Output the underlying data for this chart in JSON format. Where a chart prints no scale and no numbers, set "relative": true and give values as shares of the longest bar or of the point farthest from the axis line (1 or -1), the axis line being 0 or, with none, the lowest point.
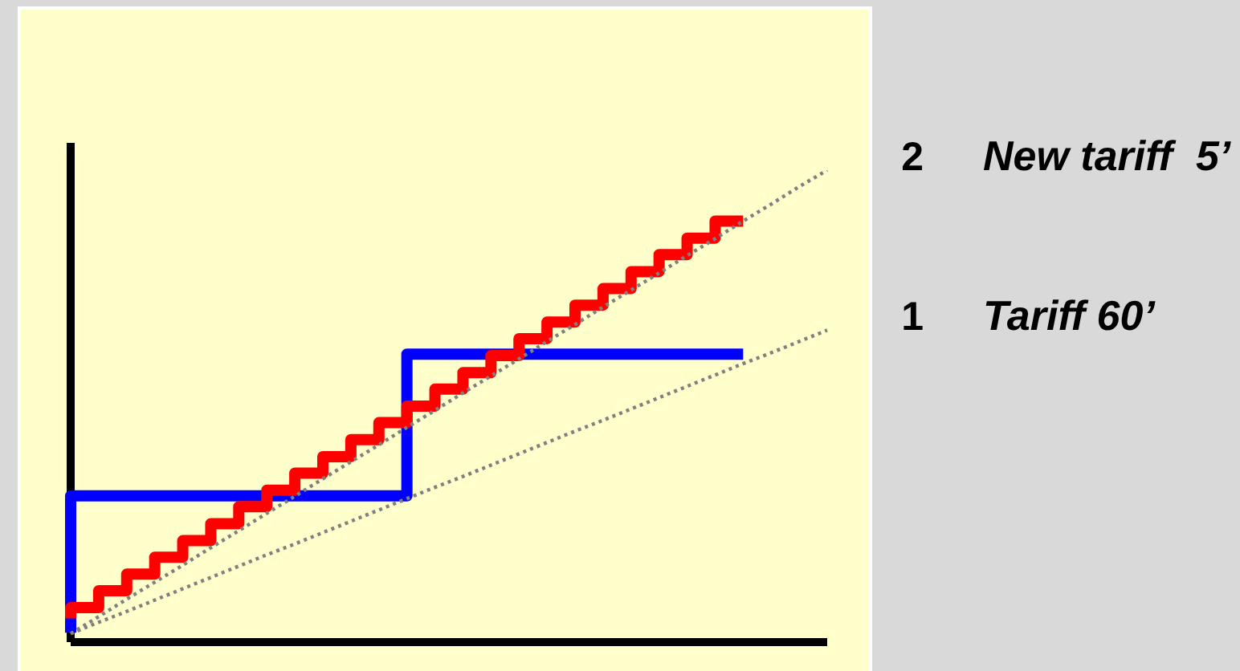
{
  "chart_data": {
    "type": "step",
    "relative": true,
    "categories": [
      null,
      null,
      null,
      null,
      null,
      null,
      null,
      null,
      null,
      null,
      null,
      null,
      null,
      null,
      null,
      null,
      null,
      null,
      null,
      null,
      null,
      null,
      null,
      null,
      null,
      null,
      null,
      null
    ],
    "series": [
      {
        "color": "#0000ff",
        "values": [
          0.02,
          0.31,
          0.31,
          0.31,
          0.31,
          0.31,
          0.31,
          0.31,
          0.31,
          0.31,
          0.31,
          0.31,
          0.31,
          0.61,
          0.61,
          0.61,
          0.61,
          0.61,
          0.61,
          0.61,
          0.61,
          0.61,
          0.61,
          0.61,
          0.61,
          null,
          null,
          null
        ]
      },
      {
        "color": "#ff0000",
        "values": [
          0.05,
          0.073,
          0.109,
          0.144,
          0.18,
          0.215,
          0.251,
          0.287,
          0.322,
          0.358,
          0.393,
          0.429,
          0.465,
          0.5,
          0.536,
          0.571,
          0.607,
          0.643,
          0.678,
          0.714,
          0.749,
          0.785,
          0.821,
          0.856,
          0.892,
          null,
          null,
          null
        ]
      },
      {
        "type": "line",
        "name": "2 New tariff  5’",
        "color": "#808080",
        "line_style": "dotted",
        "values": [
          0.018,
          0.054,
          0.091,
          0.127,
          0.163,
          0.2,
          0.236,
          0.273,
          0.309,
          0.346,
          0.382,
          0.418,
          0.455,
          0.491,
          0.528,
          0.564,
          0.6,
          0.637,
          0.673,
          0.71,
          0.746,
          0.782,
          0.819,
          0.855,
          0.892,
          0.928,
          0.965,
          1
        ]
      },
      {
        "type": "line",
        "name": "1 Tariff 60’",
        "color": "#808080",
        "line_style": "dotted",
        "values": [
          0.018,
          0.042,
          0.065,
          0.089,
          0.113,
          0.137,
          0.161,
          0.185,
          0.208,
          0.232,
          0.256,
          0.28,
          0.304,
          0.328,
          0.351,
          0.375,
          0.399,
          0.423,
          0.447,
          0.47,
          0.494,
          0.518,
          0.542,
          0.566,
          0.59,
          0.613,
          0.637,
          0.661
        ]
      }
    ]
  }
}
